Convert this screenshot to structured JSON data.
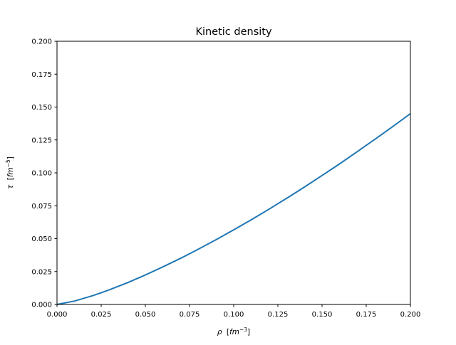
{
  "chart_data": {
    "type": "line",
    "title": "Kinetic density",
    "xlabel": {
      "symbol": "ρ",
      "unit_base": "fm",
      "unit_exp": "−3"
    },
    "ylabel": {
      "symbol": "τ",
      "unit_base": "fm",
      "unit_exp": "−5"
    },
    "xlim": [
      0.0,
      0.2
    ],
    "ylim": [
      0.0,
      0.2
    ],
    "xticks": [
      "0.000",
      "0.025",
      "0.050",
      "0.075",
      "0.100",
      "0.125",
      "0.150",
      "0.175",
      "0.200"
    ],
    "yticks": [
      "0.000",
      "0.025",
      "0.050",
      "0.075",
      "0.100",
      "0.125",
      "0.150",
      "0.175",
      "0.200"
    ],
    "grid": false,
    "series": [
      {
        "color": "#1f77b4",
        "x": [
          0.0,
          0.01,
          0.02,
          0.025,
          0.03,
          0.04,
          0.05,
          0.06,
          0.07,
          0.075,
          0.08,
          0.09,
          0.1,
          0.11,
          0.12,
          0.125,
          0.13,
          0.14,
          0.15,
          0.16,
          0.17,
          0.175,
          0.18,
          0.19,
          0.2
        ],
        "y": [
          0.0,
          0.0026,
          0.0066,
          0.0089,
          0.0113,
          0.0166,
          0.0224,
          0.0286,
          0.0351,
          0.0385,
          0.042,
          0.0492,
          0.0567,
          0.0644,
          0.0724,
          0.0766,
          0.0807,
          0.0892,
          0.098,
          0.1069,
          0.1162,
          0.1209,
          0.1256,
          0.1352,
          0.145
        ]
      }
    ]
  }
}
